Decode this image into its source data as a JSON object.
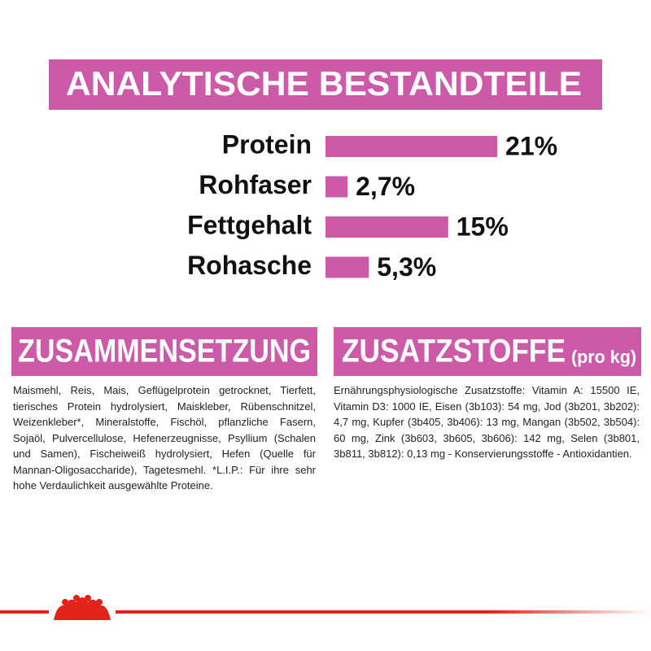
{
  "chart_data": {
    "type": "bar",
    "title": "ANALYTISCHE BESTANDTEILE",
    "categories": [
      "Protein",
      "Rohfaser",
      "Fettgehalt",
      "Rohasche"
    ],
    "values": [
      21,
      2.7,
      15,
      5.3
    ],
    "value_labels": [
      "21%",
      "2,7%",
      "15%",
      "5,3%"
    ],
    "color": "#cc5aa8"
  },
  "sections": [
    {
      "title": "ZUSAMMENSETZUNG",
      "text": "Maismehl, Reis, Mais, Geflügelprotein getrocknet, Tierfett, tierisches Protein hydrolysiert, Maiskleber, Rübenschnitzel, Weizenkleber*, Mineralstoffe, Fischöl, pflanzliche Fasern, Sojaöl, Pulvercellulose, Hefenerzeugnisse, Psyllium (Schalen und Samen), Fischeiweiß hydrolysiert, Hefen (Quelle für Mannan-Oligosaccharide), Tagetesmehl. *L.I.P.: Für ihre sehr hohe Verdaulichkeit ausgewählte Proteine."
    },
    {
      "title": "ZUSATZSTOFFE",
      "title_suffix": "(pro kg)",
      "text": "Ernährungsphysiologische Zusatzstoffe: Vitamin A: 15500 IE, Vitamin D3: 1000 IE, Eisen (3b103): 54 mg, Jod (3b201, 3b202): 4,7 mg, Kupfer (3b405, 3b406): 13 mg, Mangan (3b502, 3b504): 60 mg, Zink (3b603, 3b605, 3b606): 142 mg, Selen (3b801, 3b811, 3b812): 0,13 mg - Konservierungsstoffe - Antioxidantien."
    }
  ]
}
